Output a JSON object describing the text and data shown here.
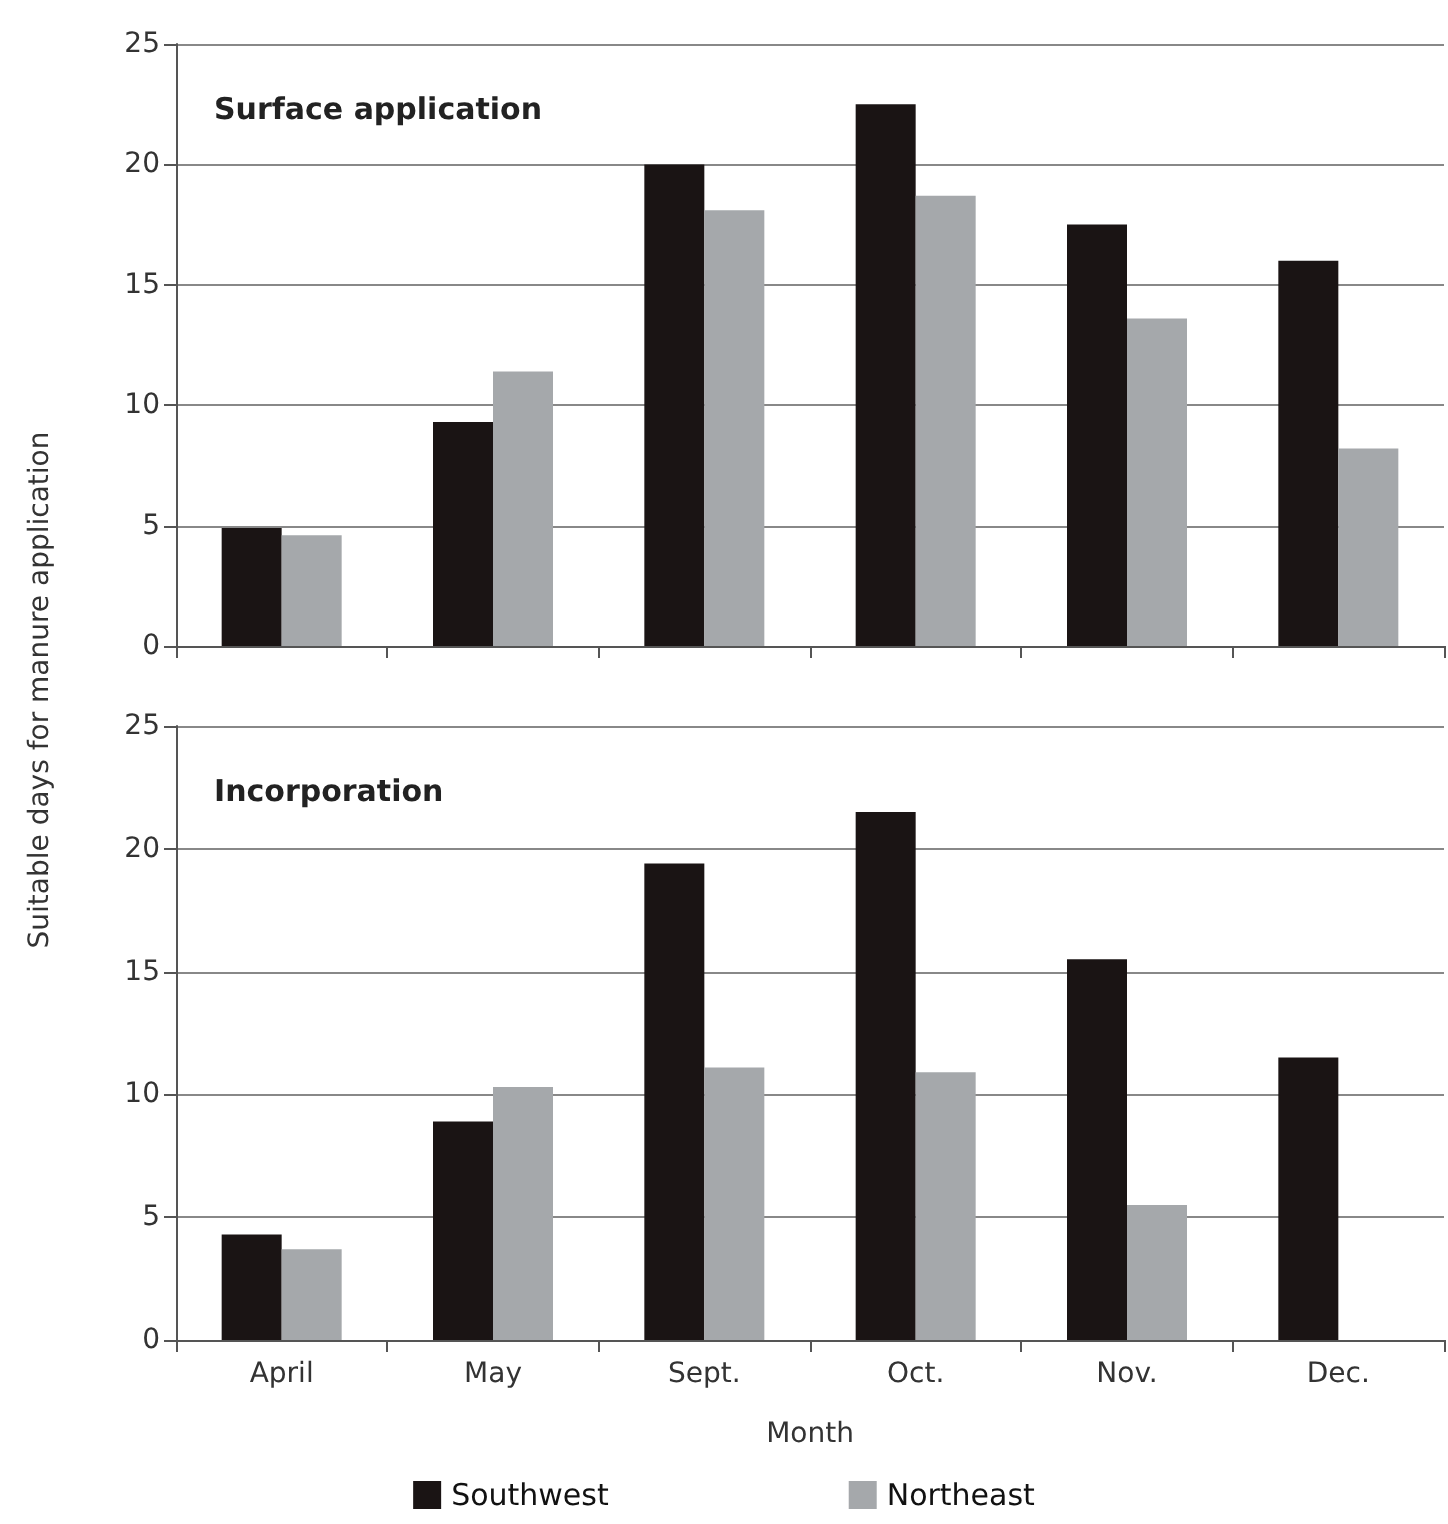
{
  "chart_data": [
    {
      "type": "bar",
      "title": "Surface application",
      "ylabel": "Suitable days for manure application",
      "categories": [
        null,
        null,
        null,
        null,
        null,
        null
      ],
      "series": [
        {
          "color": "#1a1414",
          "values": [
            4.9,
            9.3,
            20.0,
            22.5,
            17.5,
            16.0
          ]
        },
        {
          "color": "#a5a8ab",
          "values": [
            4.6,
            11.4,
            18.1,
            18.7,
            13.6,
            8.2
          ]
        }
      ],
      "ylim": [
        0,
        25
      ],
      "yticks": [
        0,
        5,
        10,
        15,
        20,
        25
      ],
      "grid": "y",
      "tick_labels": "y",
      "legend": false
    },
    {
      "type": "bar",
      "title": "Incorporation",
      "xlabel": "Month",
      "categories": [
        "April",
        "May",
        "Sept.",
        "Oct.",
        "Nov.",
        "Dec."
      ],
      "series": [
        {
          "name": "Southwest",
          "color": "#1a1414",
          "values": [
            4.3,
            8.9,
            19.4,
            21.5,
            15.5,
            11.5
          ]
        },
        {
          "name": "Northeast",
          "color": "#a5a8ab",
          "values": [
            3.7,
            10.3,
            11.1,
            10.9,
            5.5,
            null
          ]
        }
      ],
      "ylim": [
        0,
        25
      ],
      "yticks": [
        0,
        5,
        10,
        15,
        20,
        25
      ],
      "grid": "y",
      "legend": "bottom"
    }
  ]
}
